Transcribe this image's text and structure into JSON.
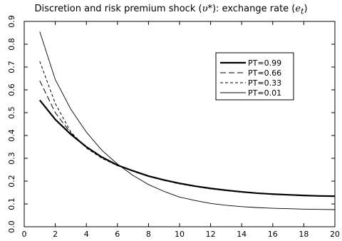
{
  "chart_data": {
    "type": "line",
    "title_parts": [
      {
        "text": "Discretion and risk premium shock (",
        "italic": false
      },
      {
        "text": "υ*",
        "italic": true
      },
      {
        "text": "): exchange rate (",
        "italic": false
      },
      {
        "text": "e",
        "italic": true
      },
      {
        "text": "t",
        "italic": true,
        "sub": true
      },
      {
        "text": ")",
        "italic": false
      }
    ],
    "title": "Discretion and risk premium shock (υ*): exchange rate (et)",
    "xlabel": "",
    "ylabel": "",
    "xlim": [
      0,
      20
    ],
    "ylim": [
      0,
      0.9
    ],
    "xticks": [
      0,
      2,
      4,
      6,
      8,
      10,
      12,
      14,
      16,
      18,
      20
    ],
    "yticks": [
      0,
      0.1,
      0.2,
      0.3,
      0.4,
      0.5,
      0.6,
      0.7,
      0.8,
      0.9
    ],
    "grid": false,
    "legend_position": "top-right",
    "x": [
      1,
      2,
      3,
      4,
      5,
      6,
      7,
      8,
      9,
      10,
      11,
      12,
      13,
      14,
      15,
      16,
      17,
      18,
      19,
      20
    ],
    "series": [
      {
        "name": "PT=0.99",
        "style": "solid-thick",
        "values": [
          0.555,
          0.47,
          0.405,
          0.35,
          0.305,
          0.27,
          0.245,
          0.222,
          0.205,
          0.19,
          0.178,
          0.168,
          0.16,
          0.153,
          0.147,
          0.143,
          0.14,
          0.137,
          0.135,
          0.134
        ]
      },
      {
        "name": "PT=0.66",
        "style": "long-dash",
        "values": [
          0.64,
          0.5,
          0.41,
          0.35,
          0.305,
          0.27,
          0.245,
          0.222,
          0.205,
          0.19,
          0.178,
          0.168,
          0.16,
          0.153,
          0.147,
          0.143,
          0.14,
          0.137,
          0.135,
          0.134
        ]
      },
      {
        "name": "PT=0.33",
        "style": "short-dash",
        "values": [
          0.725,
          0.54,
          0.415,
          0.345,
          0.3,
          0.268,
          0.243,
          0.22,
          0.203,
          0.188,
          0.176,
          0.166,
          0.158,
          0.151,
          0.146,
          0.142,
          0.139,
          0.136,
          0.134,
          0.133
        ]
      },
      {
        "name": "PT=0.01",
        "style": "solid-thin",
        "values": [
          0.855,
          0.645,
          0.515,
          0.415,
          0.335,
          0.275,
          0.225,
          0.185,
          0.155,
          0.13,
          0.115,
          0.102,
          0.094,
          0.088,
          0.084,
          0.081,
          0.079,
          0.077,
          0.076,
          0.075
        ]
      }
    ]
  },
  "colors": {
    "line": "#000000",
    "background": "#ffffff"
  }
}
